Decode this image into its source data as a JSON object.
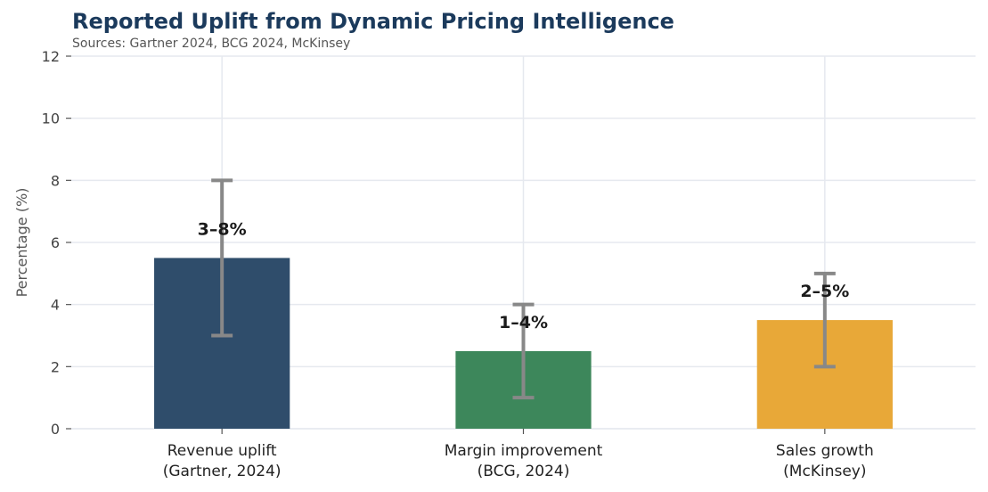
{
  "chart_data": {
    "type": "bar",
    "title": "Reported Uplift from Dynamic Pricing Intelligence",
    "subtitle": "Sources: Gartner 2024, BCG 2024, McKinsey",
    "xlabel": "",
    "ylabel": "Percentage (%)",
    "ylim": [
      0,
      12
    ],
    "yticks": [
      0,
      2,
      4,
      6,
      8,
      10,
      12
    ],
    "grid": true,
    "categories": [
      [
        "Revenue uplift",
        "(Gartner, 2024)"
      ],
      [
        "Margin improvement",
        "(BCG, 2024)"
      ],
      [
        "Sales growth",
        "(McKinsey)"
      ]
    ],
    "values": [
      5.5,
      2.5,
      3.5
    ],
    "error_low": [
      3,
      1,
      2
    ],
    "error_high": [
      8,
      4,
      5
    ],
    "data_labels": [
      "3–8%",
      "1–4%",
      "2–5%"
    ],
    "colors": [
      "#2f4d6b",
      "#3d875b",
      "#e8a838"
    ],
    "error_bar_color": "#888888"
  }
}
